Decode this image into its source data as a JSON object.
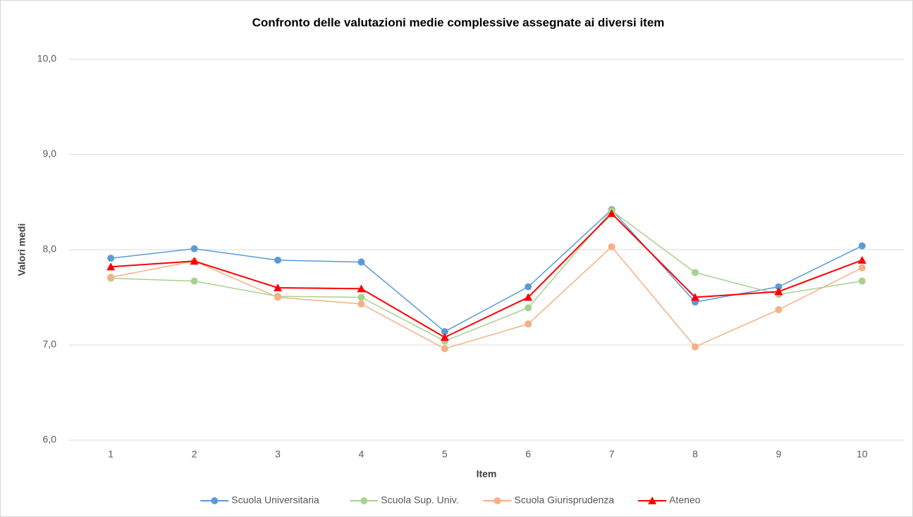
{
  "chart_data": {
    "type": "line",
    "title": "Confronto delle valutazioni medie complessive assegnate ai diversi item",
    "x_label": "Item",
    "y_label": "Valori medi",
    "categories": [
      "1",
      "2",
      "3",
      "4",
      "5",
      "6",
      "7",
      "8",
      "9",
      "10"
    ],
    "ylim": [
      6,
      10
    ],
    "yticks": [
      {
        "value": 6,
        "label": "6,0"
      },
      {
        "value": 7,
        "label": "7,0"
      },
      {
        "value": 8,
        "label": "8,0"
      },
      {
        "value": 9,
        "label": "9,0"
      },
      {
        "value": 10,
        "label": "10,0"
      }
    ],
    "grid": true,
    "legend": "bottom",
    "series": [
      {
        "name": "Scuola Universitaria",
        "color": "#5b9bd5",
        "marker": "circle",
        "values": [
          7.91,
          8.01,
          7.89,
          7.87,
          7.14,
          7.61,
          8.42,
          7.45,
          7.61,
          8.04
        ]
      },
      {
        "name": "Scuola Sup. Univ.",
        "color": "#a9d18e",
        "marker": "circle",
        "values": [
          7.7,
          7.67,
          7.51,
          7.5,
          7.04,
          7.39,
          8.41,
          7.76,
          7.53,
          7.67
        ]
      },
      {
        "name": "Scuola Giurisprudenza",
        "color": "#f4b183",
        "marker": "circle",
        "values": [
          7.71,
          7.88,
          7.5,
          7.43,
          6.96,
          7.22,
          8.03,
          6.98,
          7.37,
          7.81
        ]
      },
      {
        "name": "Ateneo",
        "color": "#ff0000",
        "marker": "triangle",
        "values": [
          7.82,
          7.88,
          7.6,
          7.59,
          7.08,
          7.5,
          8.38,
          7.5,
          7.56,
          7.89
        ]
      }
    ]
  }
}
